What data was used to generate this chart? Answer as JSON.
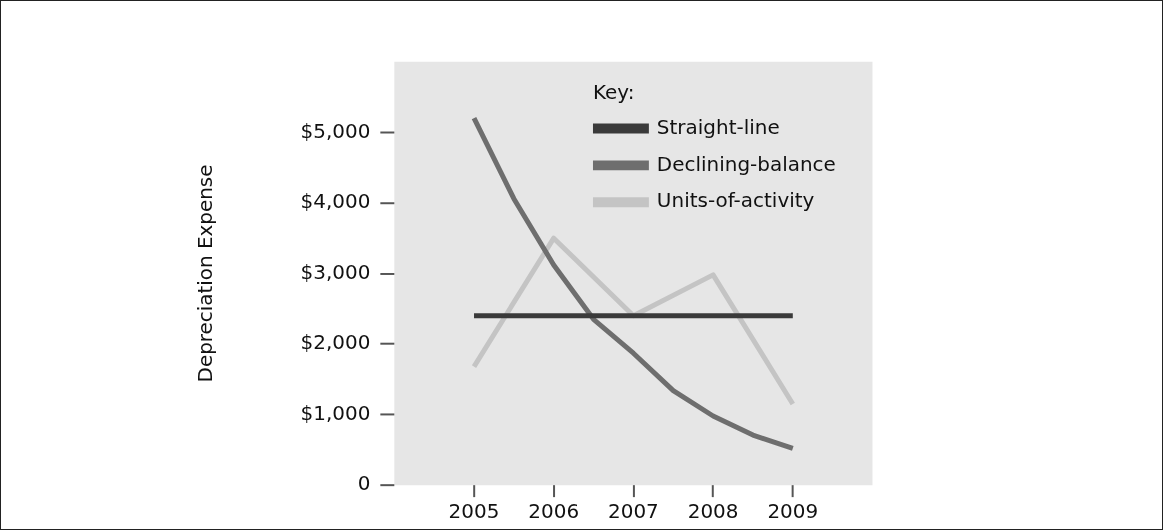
{
  "chart_data": {
    "type": "line",
    "ylabel": "Depreciation Expense",
    "legend_title": "Key:",
    "legend": "top right",
    "grid": false,
    "marker": "none",
    "line_style": "solid",
    "xlim": [
      2004,
      2010
    ],
    "xticks": [
      2005,
      2006,
      2007,
      2008,
      2009
    ],
    "ylim": [
      0,
      6000
    ],
    "yticks": [
      {
        "value": 0,
        "label": "0"
      },
      {
        "value": 1000,
        "label": "$1,000"
      },
      {
        "value": 2000,
        "label": "$2,000"
      },
      {
        "value": 3000,
        "label": "$3,000"
      },
      {
        "value": 4000,
        "label": "$4,000"
      },
      {
        "value": 5000,
        "label": "$5,000"
      }
    ],
    "series": [
      {
        "name": "Straight-line",
        "color": "#3a3a3a",
        "x": [
          2005,
          2009
        ],
        "values": [
          2400,
          2400
        ]
      },
      {
        "name": "Declining-balance",
        "color": "#6e6e6e",
        "x": [
          2005,
          2005.5,
          2006,
          2006.5,
          2007,
          2007.5,
          2008,
          2008.5,
          2009
        ],
        "values": [
          5200,
          4060,
          3120,
          2350,
          1870,
          1340,
          980,
          710,
          520
        ]
      },
      {
        "name": "Units-of-activity",
        "color": "#c4c4c4",
        "x": [
          2005,
          2006,
          2007,
          2008,
          2009
        ],
        "values": [
          1680,
          3500,
          2400,
          2980,
          1150
        ]
      }
    ]
  }
}
